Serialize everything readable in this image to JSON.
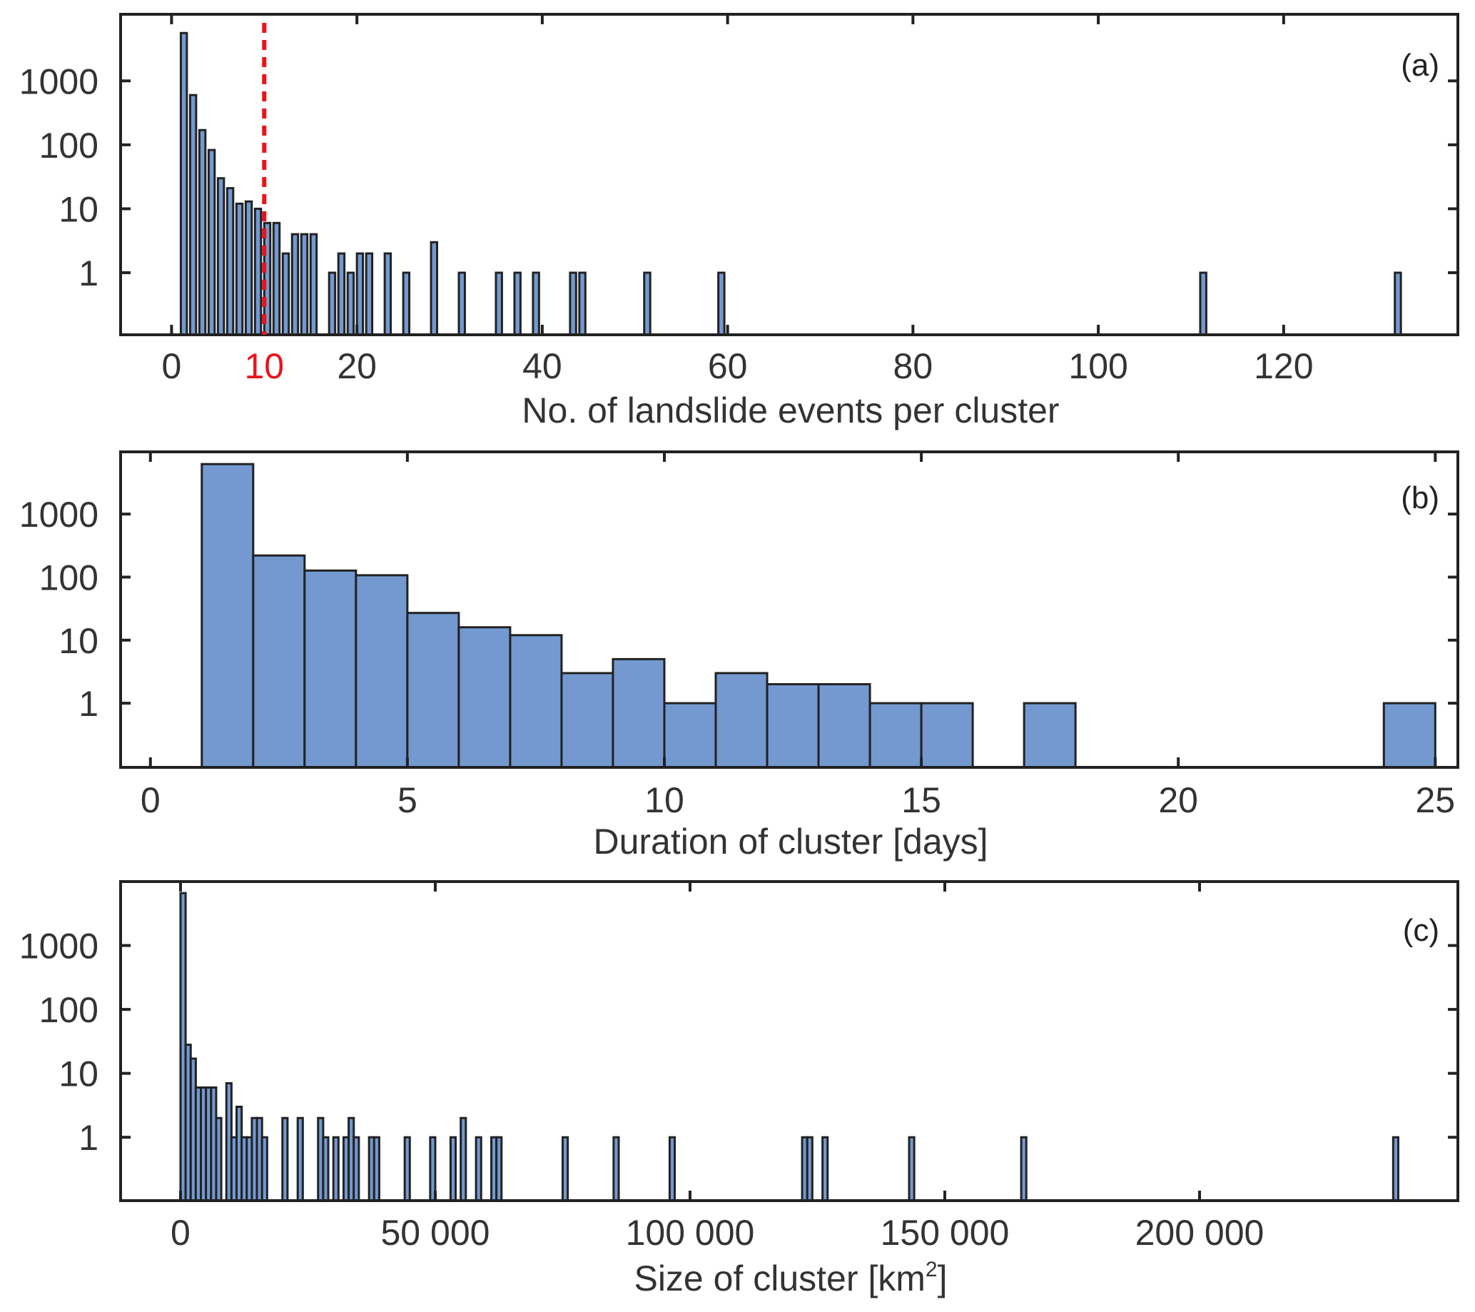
{
  "colors": {
    "bar": "#7399d0",
    "edge": "#222222",
    "threshold": "#e8141c",
    "text": "#333333"
  },
  "chart_data": [
    {
      "type": "bar",
      "panel_label": "(a)",
      "xlabel": "No. of landslide events per cluster",
      "ylabel": "",
      "yscale": "log",
      "xlim": [
        -5.5,
        138.8
      ],
      "ylim": [
        0.107,
        11000
      ],
      "bin_width": 0.65,
      "xticks": [
        0,
        20,
        40,
        60,
        80,
        100,
        120
      ],
      "xtick_labels": [
        "0",
        "20",
        "40",
        "60",
        "80",
        "100",
        "120"
      ],
      "yticks": [
        1,
        10,
        100,
        1000
      ],
      "ytick_labels": [
        "1",
        "10",
        "100",
        "1000"
      ],
      "threshold": {
        "x": 10,
        "label": "10"
      },
      "x": [
        1,
        2,
        3,
        4,
        5,
        6,
        7,
        8,
        9,
        10,
        11,
        12,
        13,
        14,
        15,
        17,
        18,
        19,
        20,
        21,
        23,
        25,
        28,
        31,
        35,
        37,
        39,
        43,
        44,
        51,
        59,
        111,
        132
      ],
      "values": [
        5600,
        600,
        170,
        83,
        30,
        21,
        12,
        13,
        10,
        6,
        6,
        2,
        4,
        4,
        4,
        1,
        2,
        1,
        2,
        2,
        2,
        1,
        3,
        1,
        1,
        1,
        1,
        1,
        1,
        1,
        1,
        1,
        1
      ]
    },
    {
      "type": "bar",
      "panel_label": "(b)",
      "xlabel": "Duration of cluster [days]",
      "ylabel": "",
      "yscale": "log",
      "xlim": [
        -0.58,
        25.44
      ],
      "ylim": [
        0.096,
        9700
      ],
      "bin_width": 1,
      "xticks": [
        0,
        5,
        10,
        15,
        20,
        25
      ],
      "xtick_labels": [
        "0",
        "5",
        "10",
        "15",
        "20",
        "25"
      ],
      "yticks": [
        1,
        10,
        100,
        1000
      ],
      "ytick_labels": [
        "1",
        "10",
        "100",
        "1000"
      ],
      "x": [
        1,
        2,
        3,
        4,
        5,
        6,
        7,
        8,
        9,
        10,
        11,
        12,
        13,
        14,
        15,
        17,
        24
      ],
      "values": [
        6200,
        220,
        127,
        107,
        27,
        16,
        12,
        3,
        5,
        1,
        3,
        2,
        2,
        1,
        1,
        1,
        1
      ]
    },
    {
      "type": "bar",
      "panel_label": "(c)",
      "xlabel": "Size of cluster [km",
      "xlabel_sup": "2",
      "xlabel_end": "]",
      "ylabel": "",
      "yscale": "log",
      "xlim": [
        -11760,
        250700
      ],
      "ylim": [
        0.102,
        10000
      ],
      "bin_width": 1000,
      "xticks": [
        0,
        50000,
        100000,
        150000,
        200000
      ],
      "xtick_labels": [
        "0",
        "50 000",
        "100 000",
        "150 000",
        "200 000"
      ],
      "yticks": [
        1,
        10,
        100,
        1000
      ],
      "ytick_labels": [
        "1",
        "10",
        "100",
        "1000"
      ],
      "x": [
        0,
        1000,
        2000,
        3000,
        4000,
        5000,
        6000,
        7000,
        9000,
        10000,
        11000,
        12000,
        13000,
        14000,
        15000,
        16000,
        20000,
        23000,
        27000,
        28000,
        30000,
        32000,
        33000,
        34000,
        37000,
        38000,
        44000,
        49000,
        53000,
        55000,
        58000,
        61000,
        62000,
        75000,
        85000,
        96000,
        122000,
        123000,
        126000,
        143000,
        165000,
        238000
      ],
      "values": [
        6600,
        28,
        17,
        6,
        6,
        6,
        6,
        2,
        7,
        1,
        3,
        1,
        1,
        2,
        2,
        1,
        2,
        2,
        2,
        1,
        1,
        1,
        2,
        1,
        1,
        1,
        1,
        1,
        1,
        2,
        1,
        1,
        1,
        1,
        1,
        1,
        1,
        1,
        1,
        1,
        1,
        1
      ]
    }
  ]
}
